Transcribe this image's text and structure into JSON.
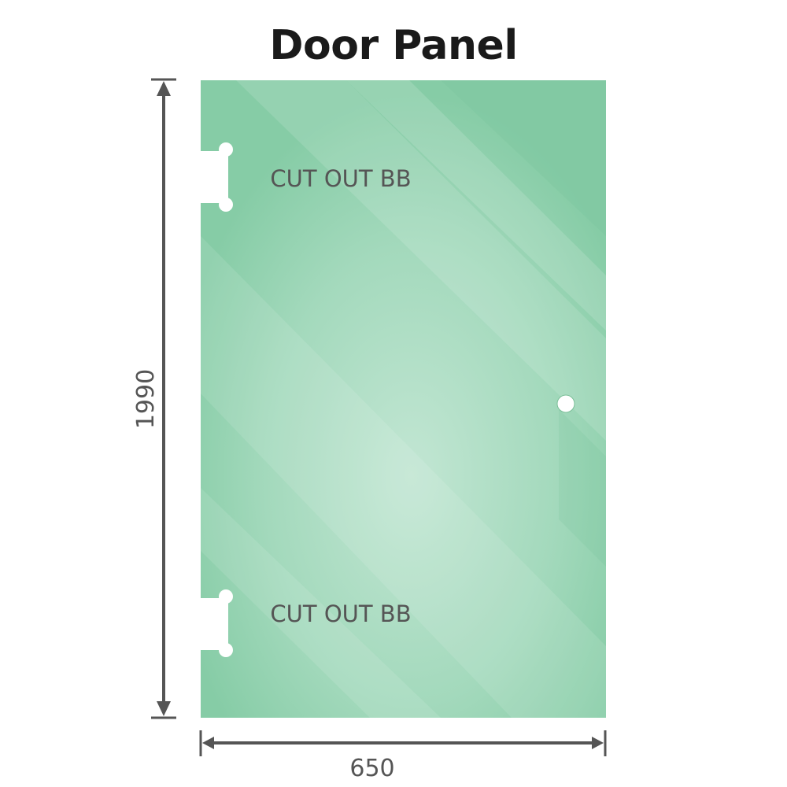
{
  "title": "Door Panel",
  "dimensions": {
    "height": "1990",
    "width": "650"
  },
  "labels": {
    "top_cutout": "CUT OUT BB",
    "bottom_cutout": "CUT OUT BB"
  },
  "colors": {
    "glass": "#86cca6",
    "glass_light": "#bfe5d0",
    "dimension_line": "#555555",
    "title": "#1a1a1a"
  }
}
